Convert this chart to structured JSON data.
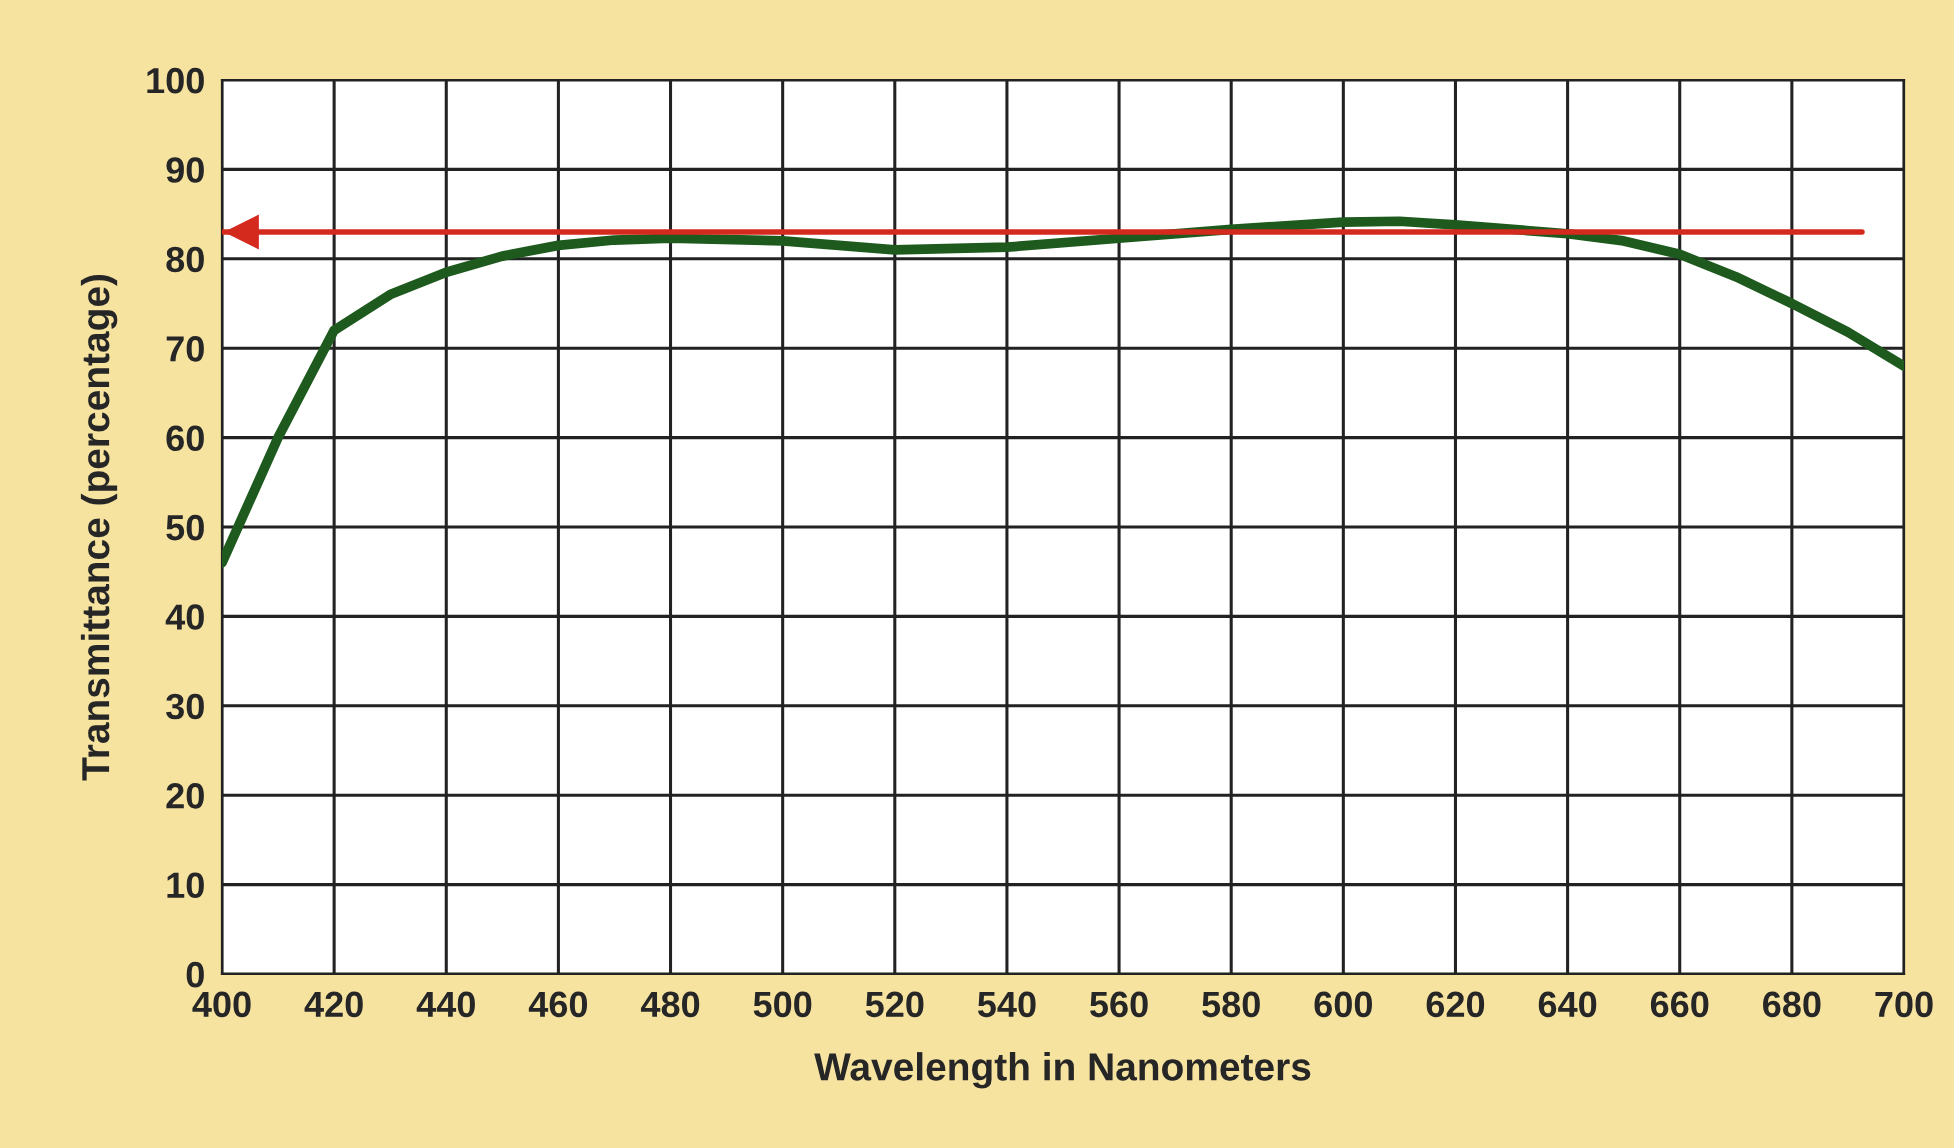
{
  "chart_data": {
    "type": "line",
    "xlabel": "Wavelength in Nanometers",
    "ylabel": "Transmittance (percentage)",
    "x": [
      400,
      410,
      420,
      430,
      440,
      450,
      460,
      470,
      480,
      500,
      520,
      540,
      560,
      580,
      600,
      610,
      620,
      640,
      650,
      660,
      670,
      680,
      690,
      700
    ],
    "series": [
      {
        "color": "#1e5a1e",
        "values": [
          46,
          60,
          72,
          76,
          78.5,
          80.3,
          81.5,
          82.1,
          82.3,
          82,
          81,
          81.3,
          82.3,
          83.3,
          84.1,
          84.2,
          83.8,
          82.8,
          82,
          80.5,
          78,
          75,
          71.8,
          68
        ]
      }
    ],
    "xlim": [
      400,
      700
    ],
    "xticks": [
      400,
      420,
      440,
      460,
      480,
      500,
      520,
      540,
      560,
      580,
      600,
      620,
      640,
      660,
      680,
      700
    ],
    "ylim": [
      0,
      100
    ],
    "yticks": [
      0,
      10,
      20,
      30,
      40,
      50,
      60,
      70,
      80,
      90,
      100
    ],
    "grid": true,
    "legend": false,
    "marker": "none",
    "line_style": "solid",
    "ref_lines": [
      {
        "axis": "y",
        "value": 83,
        "color": "#d42a1e"
      }
    ]
  }
}
